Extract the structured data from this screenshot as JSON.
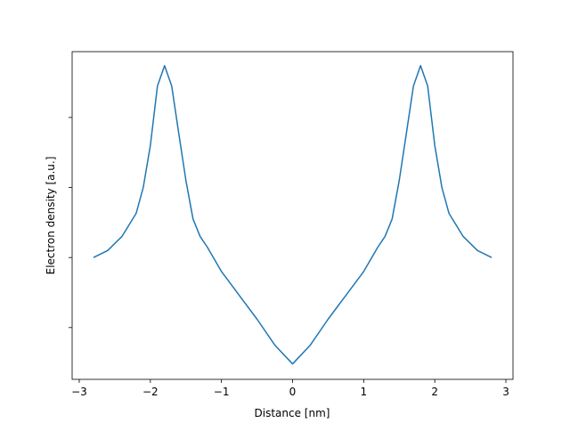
{
  "chart_data": {
    "type": "line",
    "xlabel": "Distance [nm]",
    "ylabel": "Electron density [a.u.]",
    "x": [
      -2.8,
      -2.6,
      -2.4,
      -2.2,
      -2.1,
      -2.0,
      -1.9,
      -1.8,
      -1.7,
      -1.6,
      -1.5,
      -1.4,
      -1.3,
      -1.2,
      -1.0,
      -0.75,
      -0.5,
      -0.25,
      0,
      0.25,
      0.5,
      0.75,
      1.0,
      1.2,
      1.3,
      1.4,
      1.5,
      1.6,
      1.7,
      1.8,
      1.9,
      2.0,
      2.1,
      2.2,
      2.4,
      2.6,
      2.8
    ],
    "series": [
      {
        "color": "#1f77b4",
        "values": [
          2.0,
          2.1,
          2.3,
          2.63,
          3.0,
          3.6,
          4.45,
          4.74,
          4.45,
          3.77,
          3.1,
          2.55,
          2.3,
          2.15,
          1.8,
          1.46,
          1.12,
          0.75,
          0.48,
          0.75,
          1.12,
          1.46,
          1.8,
          2.15,
          2.3,
          2.55,
          3.1,
          3.77,
          4.45,
          4.74,
          4.45,
          3.6,
          3.0,
          2.63,
          2.3,
          2.1,
          2.0
        ]
      }
    ],
    "xlim": [
      -3.1,
      3.1
    ],
    "xticks": [
      {
        "value": -3,
        "label": "−3"
      },
      {
        "value": -2,
        "label": "−2"
      },
      {
        "value": -1,
        "label": "−1"
      },
      0,
      1,
      2,
      3
    ],
    "ylim": [
      0.26,
      4.94
    ],
    "yticks": [
      1,
      2,
      3,
      4
    ]
  }
}
